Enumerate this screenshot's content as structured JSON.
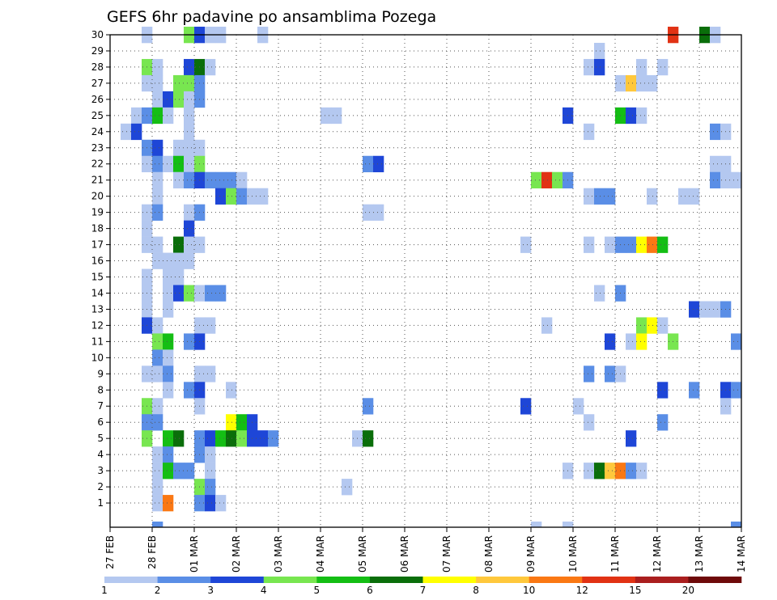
{
  "chart_data": {
    "type": "heatmap",
    "title": "GEFS 6hr padavine po ansamblima Pozega",
    "xlabel": "",
    "ylabel": "",
    "x_tick_labels": [
      "27 FEB",
      "28 FEB",
      "01 MAR",
      "02 MAR",
      "03 MAR",
      "04 MAR",
      "05 MAR",
      "06 MAR",
      "07 MAR",
      "08 MAR",
      "09 MAR",
      "10 MAR",
      "11 MAR",
      "12 MAR",
      "13 MAR",
      "14 MAR"
    ],
    "y_tick_labels": [
      "1",
      "2",
      "3",
      "4",
      "5",
      "6",
      "7",
      "8",
      "9",
      "10",
      "11",
      "12",
      "13",
      "14",
      "15",
      "16",
      "17",
      "18",
      "19",
      "20",
      "21",
      "22",
      "23",
      "24",
      "25",
      "26",
      "27",
      "28",
      "29",
      "30"
    ],
    "x_step_hours": 6,
    "steps_per_day": 4,
    "grid": true,
    "legend": {
      "placement": "bottom",
      "thresholds": [
        "1",
        "2",
        "3",
        "4",
        "5",
        "6",
        "7",
        "8",
        "10",
        "12",
        "15",
        "20"
      ],
      "colors": [
        "#b4c8f0",
        "#5a8ee6",
        "#1e46d7",
        "#78e650",
        "#14be14",
        "#0a6e0a",
        "#ffff00",
        "#ffc83c",
        "#fa7814",
        "#e13214",
        "#aa1e1e",
        "#6e0a0a"
      ]
    },
    "cells": [
      [
        30,
        3,
        0
      ],
      [
        30,
        7,
        3
      ],
      [
        30,
        8,
        2
      ],
      [
        30,
        9,
        0
      ],
      [
        30,
        10,
        0
      ],
      [
        30,
        14,
        0
      ],
      [
        30,
        53,
        9
      ],
      [
        30,
        56,
        5
      ],
      [
        30,
        57,
        0
      ],
      [
        29,
        46,
        0
      ],
      [
        28,
        3,
        3
      ],
      [
        28,
        4,
        0
      ],
      [
        28,
        7,
        2
      ],
      [
        28,
        8,
        5
      ],
      [
        28,
        9,
        0
      ],
      [
        28,
        45,
        0
      ],
      [
        28,
        46,
        2
      ],
      [
        28,
        50,
        0
      ],
      [
        28,
        52,
        0
      ],
      [
        27,
        3,
        0
      ],
      [
        27,
        4,
        0
      ],
      [
        27,
        6,
        3
      ],
      [
        27,
        7,
        3
      ],
      [
        27,
        8,
        1
      ],
      [
        27,
        48,
        0
      ],
      [
        27,
        49,
        7
      ],
      [
        27,
        50,
        0
      ],
      [
        27,
        51,
        0
      ],
      [
        26,
        4,
        0
      ],
      [
        26,
        5,
        2
      ],
      [
        26,
        6,
        3
      ],
      [
        26,
        7,
        0
      ],
      [
        26,
        8,
        1
      ],
      [
        25,
        2,
        0
      ],
      [
        25,
        3,
        1
      ],
      [
        25,
        4,
        4
      ],
      [
        25,
        5,
        0
      ],
      [
        25,
        7,
        0
      ],
      [
        25,
        20,
        0
      ],
      [
        25,
        21,
        0
      ],
      [
        25,
        43,
        2
      ],
      [
        25,
        48,
        4
      ],
      [
        25,
        49,
        2
      ],
      [
        25,
        50,
        0
      ],
      [
        24,
        1,
        0
      ],
      [
        24,
        2,
        2
      ],
      [
        24,
        7,
        0
      ],
      [
        24,
        45,
        0
      ],
      [
        24,
        57,
        1
      ],
      [
        24,
        58,
        0
      ],
      [
        23,
        3,
        1
      ],
      [
        23,
        4,
        2
      ],
      [
        23,
        6,
        0
      ],
      [
        23,
        7,
        0
      ],
      [
        23,
        8,
        0
      ],
      [
        22,
        3,
        0
      ],
      [
        22,
        4,
        1
      ],
      [
        22,
        5,
        0
      ],
      [
        22,
        6,
        4
      ],
      [
        22,
        7,
        0
      ],
      [
        22,
        8,
        3
      ],
      [
        22,
        24,
        1
      ],
      [
        22,
        25,
        2
      ],
      [
        22,
        57,
        0
      ],
      [
        22,
        58,
        0
      ],
      [
        21,
        4,
        0
      ],
      [
        21,
        6,
        0
      ],
      [
        21,
        7,
        1
      ],
      [
        21,
        8,
        2
      ],
      [
        21,
        9,
        1
      ],
      [
        21,
        10,
        1
      ],
      [
        21,
        11,
        1
      ],
      [
        21,
        12,
        0
      ],
      [
        21,
        40,
        3
      ],
      [
        21,
        41,
        9
      ],
      [
        21,
        42,
        3
      ],
      [
        21,
        43,
        1
      ],
      [
        21,
        57,
        1
      ],
      [
        21,
        58,
        0
      ],
      [
        21,
        59,
        0
      ],
      [
        20,
        4,
        0
      ],
      [
        20,
        10,
        2
      ],
      [
        20,
        11,
        3
      ],
      [
        20,
        12,
        1
      ],
      [
        20,
        13,
        0
      ],
      [
        20,
        14,
        0
      ],
      [
        20,
        45,
        0
      ],
      [
        20,
        46,
        1
      ],
      [
        20,
        47,
        1
      ],
      [
        20,
        51,
        0
      ],
      [
        20,
        54,
        0
      ],
      [
        20,
        55,
        0
      ],
      [
        19,
        3,
        0
      ],
      [
        19,
        4,
        1
      ],
      [
        19,
        7,
        0
      ],
      [
        19,
        8,
        1
      ],
      [
        19,
        24,
        0
      ],
      [
        19,
        25,
        0
      ],
      [
        18,
        3,
        0
      ],
      [
        18,
        7,
        2
      ],
      [
        17,
        3,
        0
      ],
      [
        17,
        4,
        0
      ],
      [
        17,
        6,
        5
      ],
      [
        17,
        7,
        0
      ],
      [
        17,
        8,
        0
      ],
      [
        17,
        39,
        0
      ],
      [
        17,
        45,
        0
      ],
      [
        17,
        47,
        0
      ],
      [
        17,
        48,
        1
      ],
      [
        17,
        49,
        1
      ],
      [
        17,
        50,
        6
      ],
      [
        17,
        51,
        8
      ],
      [
        17,
        52,
        4
      ],
      [
        16,
        4,
        0
      ],
      [
        16,
        5,
        0
      ],
      [
        16,
        6,
        0
      ],
      [
        16,
        7,
        0
      ],
      [
        15,
        3,
        0
      ],
      [
        15,
        5,
        0
      ],
      [
        15,
        6,
        0
      ],
      [
        14,
        3,
        0
      ],
      [
        14,
        5,
        0
      ],
      [
        14,
        6,
        2
      ],
      [
        14,
        7,
        3
      ],
      [
        14,
        8,
        0
      ],
      [
        14,
        9,
        1
      ],
      [
        14,
        10,
        1
      ],
      [
        14,
        46,
        0
      ],
      [
        14,
        48,
        1
      ],
      [
        13,
        3,
        0
      ],
      [
        13,
        5,
        0
      ],
      [
        13,
        55,
        2
      ],
      [
        13,
        56,
        0
      ],
      [
        13,
        57,
        0
      ],
      [
        13,
        58,
        1
      ],
      [
        12,
        3,
        2
      ],
      [
        12,
        4,
        0
      ],
      [
        12,
        8,
        0
      ],
      [
        12,
        9,
        0
      ],
      [
        12,
        41,
        0
      ],
      [
        12,
        50,
        3
      ],
      [
        12,
        51,
        6
      ],
      [
        12,
        52,
        0
      ],
      [
        11,
        4,
        3
      ],
      [
        11,
        5,
        4
      ],
      [
        11,
        7,
        1
      ],
      [
        11,
        8,
        2
      ],
      [
        11,
        47,
        2
      ],
      [
        11,
        49,
        0
      ],
      [
        11,
        50,
        6
      ],
      [
        11,
        53,
        3
      ],
      [
        11,
        59,
        1
      ],
      [
        10,
        4,
        1
      ],
      [
        10,
        5,
        0
      ],
      [
        9,
        3,
        0
      ],
      [
        9,
        4,
        0
      ],
      [
        9,
        5,
        1
      ],
      [
        9,
        8,
        0
      ],
      [
        9,
        9,
        0
      ],
      [
        9,
        45,
        1
      ],
      [
        9,
        47,
        1
      ],
      [
        9,
        48,
        0
      ],
      [
        8,
        5,
        0
      ],
      [
        8,
        7,
        1
      ],
      [
        8,
        8,
        2
      ],
      [
        8,
        11,
        0
      ],
      [
        8,
        52,
        2
      ],
      [
        8,
        55,
        1
      ],
      [
        8,
        58,
        2
      ],
      [
        8,
        59,
        1
      ],
      [
        7,
        3,
        3
      ],
      [
        7,
        4,
        0
      ],
      [
        7,
        8,
        0
      ],
      [
        7,
        24,
        1
      ],
      [
        7,
        39,
        2
      ],
      [
        7,
        44,
        0
      ],
      [
        7,
        58,
        0
      ],
      [
        6,
        3,
        1
      ],
      [
        6,
        4,
        1
      ],
      [
        6,
        11,
        6
      ],
      [
        6,
        12,
        4
      ],
      [
        6,
        13,
        2
      ],
      [
        6,
        45,
        0
      ],
      [
        6,
        52,
        1
      ],
      [
        5,
        3,
        3
      ],
      [
        5,
        5,
        4
      ],
      [
        5,
        6,
        5
      ],
      [
        5,
        8,
        1
      ],
      [
        5,
        9,
        2
      ],
      [
        5,
        10,
        4
      ],
      [
        5,
        11,
        5
      ],
      [
        5,
        12,
        3
      ],
      [
        5,
        13,
        2
      ],
      [
        5,
        14,
        2
      ],
      [
        5,
        15,
        1
      ],
      [
        5,
        23,
        0
      ],
      [
        5,
        24,
        5
      ],
      [
        5,
        49,
        2
      ],
      [
        4,
        4,
        0
      ],
      [
        4,
        5,
        1
      ],
      [
        4,
        8,
        1
      ],
      [
        4,
        9,
        0
      ],
      [
        3,
        4,
        0
      ],
      [
        3,
        5,
        4
      ],
      [
        3,
        6,
        1
      ],
      [
        3,
        7,
        1
      ],
      [
        3,
        9,
        0
      ],
      [
        3,
        43,
        0
      ],
      [
        3,
        45,
        0
      ],
      [
        3,
        46,
        5
      ],
      [
        3,
        47,
        7
      ],
      [
        3,
        48,
        8
      ],
      [
        3,
        49,
        1
      ],
      [
        3,
        50,
        0
      ],
      [
        2,
        4,
        0
      ],
      [
        2,
        8,
        3
      ],
      [
        2,
        9,
        1
      ],
      [
        2,
        22,
        0
      ],
      [
        1,
        4,
        0
      ],
      [
        1,
        5,
        8
      ],
      [
        1,
        8,
        1
      ],
      [
        1,
        9,
        2
      ],
      [
        1,
        10,
        0
      ],
      [
        0,
        4,
        1
      ],
      [
        0,
        40,
        0
      ],
      [
        0,
        43,
        0
      ],
      [
        0,
        59,
        1
      ]
    ]
  }
}
